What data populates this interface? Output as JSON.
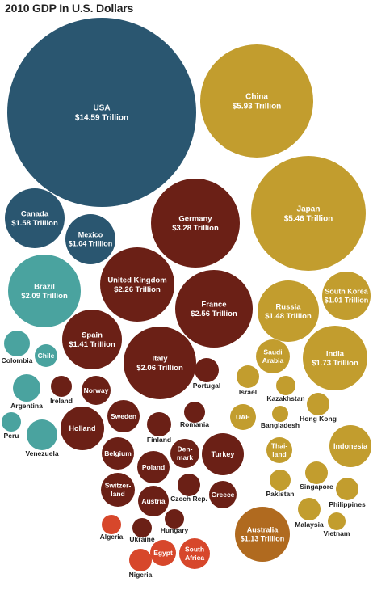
{
  "chart_data": {
    "type": "bubble",
    "title": "2010 GDP In U.S. Dollars",
    "colors": {
      "north_america": "#2a5670",
      "latin_america": "#4aa39f",
      "europe": "#6b2016",
      "asia_middle_east": "#c29d2e",
      "oceania": "#b06a1f",
      "africa": "#d7472b"
    },
    "bubbles": [
      {
        "id": "usa",
        "name": "USA",
        "value": "$14.59 Trillion",
        "region": "north_america"
      },
      {
        "id": "china",
        "name": "China",
        "value": "$5.93 Trillion",
        "region": "asia_middle_east"
      },
      {
        "id": "japan",
        "name": "Japan",
        "value": "$5.46 Trillion",
        "region": "asia_middle_east"
      },
      {
        "id": "germany",
        "name": "Germany",
        "value": "$3.28 Trillion",
        "region": "europe"
      },
      {
        "id": "canada",
        "name": "Canada",
        "value": "$1.58 Trillion",
        "region": "north_america"
      },
      {
        "id": "mexico",
        "name": "Mexico",
        "value": "$1.04 Trillion",
        "region": "north_america"
      },
      {
        "id": "brazil",
        "name": "Brazil",
        "value": "$2.09 Trillion",
        "region": "latin_america"
      },
      {
        "id": "uk",
        "name": "United Kingdom",
        "value": "$2.26 Trillion",
        "region": "europe"
      },
      {
        "id": "france",
        "name": "France",
        "value": "$2.56 Trillion",
        "region": "europe"
      },
      {
        "id": "russia",
        "name": "Russia",
        "value": "$1.48 Trillion",
        "region": "asia_middle_east"
      },
      {
        "id": "south-korea",
        "name": "South Korea",
        "value": "$1.01 Trillion",
        "region": "asia_middle_east"
      },
      {
        "id": "spain",
        "name": "Spain",
        "value": "$1.41 Trillion",
        "region": "europe"
      },
      {
        "id": "italy",
        "name": "Italy",
        "value": "$2.06 Trillion",
        "region": "europe"
      },
      {
        "id": "india",
        "name": "India",
        "value": "$1.73 Trillion",
        "region": "asia_middle_east"
      },
      {
        "id": "australia",
        "name": "Australia",
        "value": "$1.13 Trillion",
        "region": "oceania"
      },
      {
        "id": "colombia",
        "name": "Colombia",
        "region": "latin_america"
      },
      {
        "id": "chile",
        "name": "Chile",
        "region": "latin_america"
      },
      {
        "id": "argentina",
        "name": "Argentina",
        "region": "latin_america"
      },
      {
        "id": "peru",
        "name": "Peru",
        "region": "latin_america"
      },
      {
        "id": "venezuela",
        "name": "Venezuela",
        "region": "latin_america"
      },
      {
        "id": "ireland",
        "name": "Ireland",
        "region": "europe"
      },
      {
        "id": "norway",
        "name": "Norway",
        "region": "europe"
      },
      {
        "id": "portugal",
        "name": "Portugal",
        "region": "europe"
      },
      {
        "id": "holland",
        "name": "Holland",
        "region": "europe"
      },
      {
        "id": "sweden",
        "name": "Sweden",
        "region": "europe"
      },
      {
        "id": "romania",
        "name": "Romania",
        "region": "europe"
      },
      {
        "id": "finland",
        "name": "Finland",
        "region": "europe"
      },
      {
        "id": "belgium",
        "name": "Belgium",
        "region": "europe"
      },
      {
        "id": "denmark",
        "name": "Den-\nmark",
        "region": "europe"
      },
      {
        "id": "turkey",
        "name": "Turkey",
        "region": "europe"
      },
      {
        "id": "poland",
        "name": "Poland",
        "region": "europe"
      },
      {
        "id": "switzerland",
        "name": "Switzer-\nland",
        "region": "europe"
      },
      {
        "id": "czech-rep",
        "name": "Czech Rep.",
        "region": "europe"
      },
      {
        "id": "austria",
        "name": "Austria",
        "region": "europe"
      },
      {
        "id": "greece",
        "name": "Greece",
        "region": "europe"
      },
      {
        "id": "hungary",
        "name": "Hungary",
        "region": "europe"
      },
      {
        "id": "ukraine",
        "name": "Ukraine",
        "region": "europe"
      },
      {
        "id": "saudi-arabia",
        "name": "Saudi\nArabia",
        "region": "asia_middle_east"
      },
      {
        "id": "israel",
        "name": "Israel",
        "region": "asia_middle_east"
      },
      {
        "id": "kazakhstan",
        "name": "Kazakhstan",
        "region": "asia_middle_east"
      },
      {
        "id": "uae",
        "name": "UAE",
        "region": "asia_middle_east"
      },
      {
        "id": "bangladesh",
        "name": "Bangladesh",
        "region": "asia_middle_east"
      },
      {
        "id": "hong-kong",
        "name": "Hong Kong",
        "region": "asia_middle_east"
      },
      {
        "id": "thailand",
        "name": "Thai-\nland",
        "region": "asia_middle_east"
      },
      {
        "id": "indonesia",
        "name": "Indonesia",
        "region": "asia_middle_east"
      },
      {
        "id": "pakistan",
        "name": "Pakistan",
        "region": "asia_middle_east"
      },
      {
        "id": "singapore",
        "name": "Singapore",
        "region": "asia_middle_east"
      },
      {
        "id": "philippines",
        "name": "Philippines",
        "region": "asia_middle_east"
      },
      {
        "id": "malaysia",
        "name": "Malaysia",
        "region": "asia_middle_east"
      },
      {
        "id": "vietnam",
        "name": "Vietnam",
        "region": "asia_middle_east"
      },
      {
        "id": "algeria",
        "name": "Algeria",
        "region": "africa"
      },
      {
        "id": "egypt",
        "name": "Egypt",
        "region": "africa"
      },
      {
        "id": "south-africa",
        "name": "South\nAfrica",
        "region": "africa"
      },
      {
        "id": "nigeria",
        "name": "Nigeria",
        "region": "africa"
      }
    ]
  }
}
